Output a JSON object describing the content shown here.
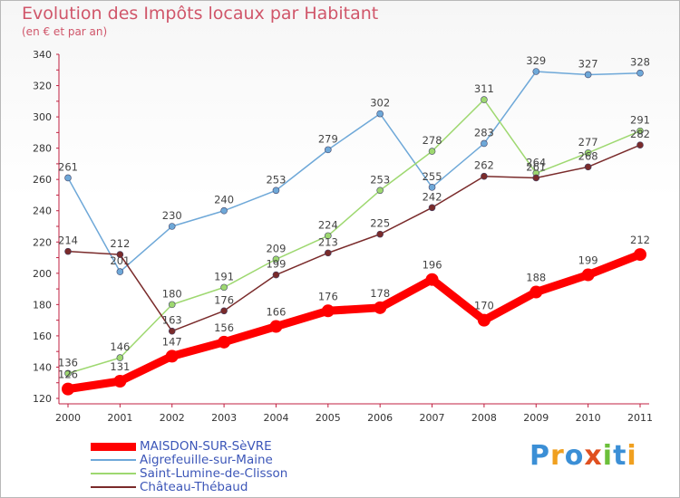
{
  "chart_data": {
    "type": "line",
    "title": "Evolution des Impôts locaux par Habitant",
    "subtitle": "(en € et par an)",
    "xlabel": "",
    "ylabel": "",
    "ylim": [
      120,
      340
    ],
    "yticks": [
      120,
      140,
      160,
      180,
      200,
      220,
      240,
      260,
      280,
      300,
      320,
      340
    ],
    "grid": false,
    "categories": [
      "2000",
      "2001",
      "2002",
      "2003",
      "2004",
      "2005",
      "2006",
      "2007",
      "2008",
      "2009",
      "2010",
      "2011"
    ],
    "series": [
      {
        "name": "MAISDON-SUR-SèVRE",
        "color": "#ff0000",
        "values": [
          126,
          131,
          147,
          156,
          166,
          176,
          178,
          196,
          170,
          188,
          199,
          212
        ]
      },
      {
        "name": "Aigrefeuille-sur-Maine",
        "color": "#6ea8d8",
        "values": [
          261,
          201,
          230,
          240,
          253,
          279,
          302,
          255,
          283,
          329,
          327,
          328
        ]
      },
      {
        "name": "Saint-Lumine-de-Clisson",
        "color": "#9ed870",
        "values": [
          136,
          146,
          180,
          191,
          209,
          224,
          253,
          278,
          311,
          264,
          277,
          291
        ]
      },
      {
        "name": "Château-Thébaud",
        "color": "#7a2b2b",
        "values": [
          214,
          212,
          163,
          176,
          199,
          213,
          225,
          242,
          262,
          261,
          268,
          282
        ]
      }
    ],
    "legend_position": "bottom-left"
  },
  "brand": {
    "logo_letters": [
      "P",
      "r",
      "o",
      "x",
      "i",
      "t",
      "i"
    ],
    "logo_colors": [
      "#3b8fd6",
      "#f0a020",
      "#3b8fd6",
      "#e05020",
      "#6cbf3a",
      "#3b8fd6",
      "#f0a020"
    ]
  }
}
